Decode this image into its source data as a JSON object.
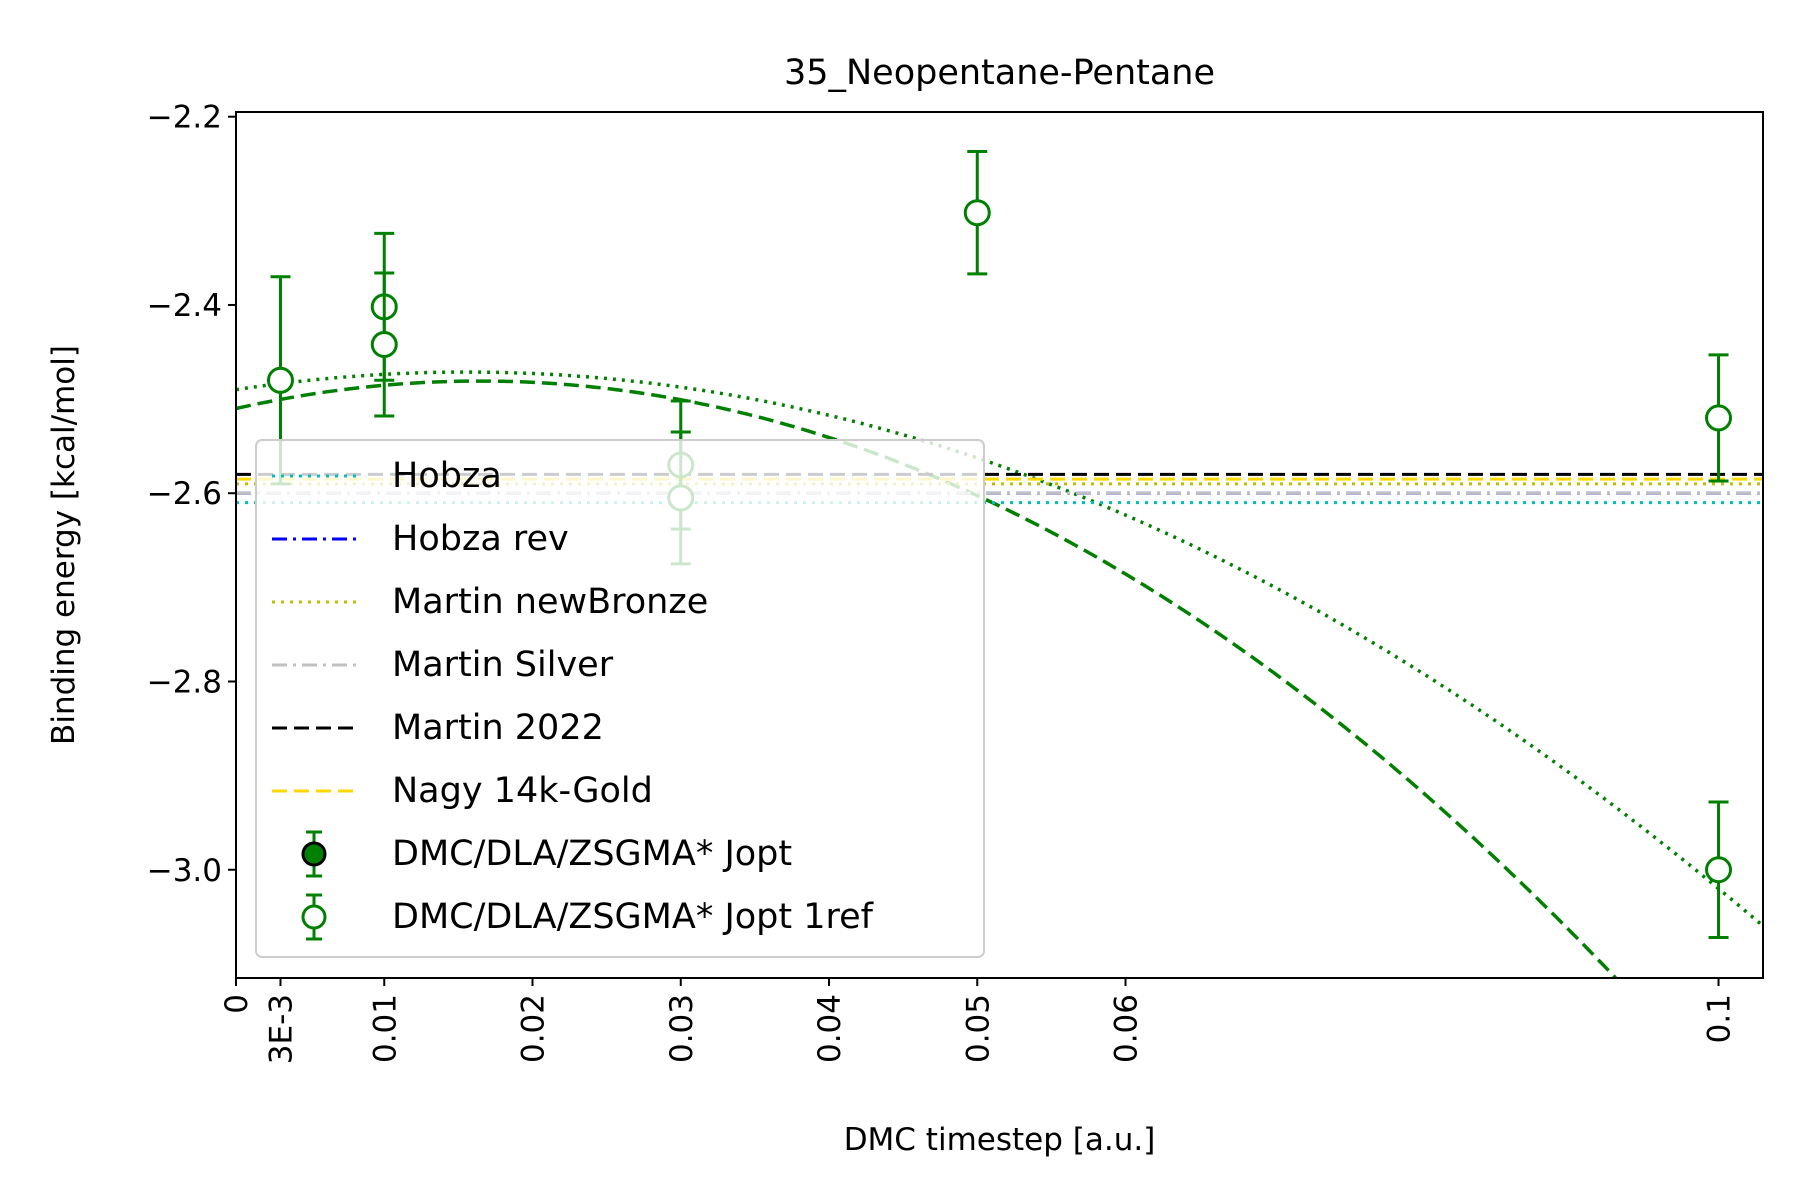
{
  "chart_data": {
    "type": "scatter",
    "title": "35_Neopentane-Pentane",
    "xlabel": "DMC timestep [a.u.]",
    "ylabel": "Binding energy [kcal/mol]",
    "xlim": [
      0,
      0.103
    ],
    "ylim": [
      -3.115,
      -2.195
    ],
    "x_ticks": [
      {
        "value": 0,
        "label": "0"
      },
      {
        "value": 0.003,
        "label": "3E-3"
      },
      {
        "value": 0.01,
        "label": "0.01"
      },
      {
        "value": 0.02,
        "label": "0.02"
      },
      {
        "value": 0.03,
        "label": "0.03"
      },
      {
        "value": 0.04,
        "label": "0.04"
      },
      {
        "value": 0.05,
        "label": "0.05"
      },
      {
        "value": 0.06,
        "label": "0.06"
      },
      {
        "value": 0.1,
        "label": "0.1"
      }
    ],
    "y_ticks": [
      {
        "value": -2.2,
        "label": "−2.2"
      },
      {
        "value": -2.4,
        "label": "−2.4"
      },
      {
        "value": -2.6,
        "label": "−2.6"
      },
      {
        "value": -2.8,
        "label": "−2.8"
      },
      {
        "value": -3.0,
        "label": "−3.0"
      }
    ],
    "reference_lines": [
      {
        "name": "Hobza",
        "y": -2.61,
        "color": "#00bfbf",
        "dash": "dotted"
      },
      {
        "name": "Hobza rev",
        "y": -2.6,
        "color": "#0000ff",
        "dash": "dashdot"
      },
      {
        "name": "Martin newBronze",
        "y": -2.59,
        "color": "#bfbf00",
        "dash": "dotted"
      },
      {
        "name": "Martin Silver",
        "y": -2.6,
        "color": "#c0c0c0",
        "dash": "dashdot"
      },
      {
        "name": "Martin 2022",
        "y": -2.58,
        "color": "#000000",
        "dash": "dashed"
      },
      {
        "name": "Nagy 14k-Gold",
        "y": -2.585,
        "color": "#ffd700",
        "dash": "dashed"
      }
    ],
    "series": [
      {
        "name": "DMC/DLA/ZSGMA* Jopt",
        "marker": "filled-circle",
        "color": "#008000",
        "points": []
      },
      {
        "name": "DMC/DLA/ZSGMA* Jopt 1ref",
        "marker": "open-circle",
        "color": "#008000",
        "points": [
          {
            "x": 0.003,
            "y": -2.48,
            "err": 0.11
          },
          {
            "x": 0.01,
            "y": -2.402,
            "err": 0.078
          },
          {
            "x": 0.01,
            "y": -2.442,
            "err": 0.076
          },
          {
            "x": 0.03,
            "y": -2.57,
            "err": 0.068
          },
          {
            "x": 0.03,
            "y": -2.605,
            "err": 0.07
          },
          {
            "x": 0.05,
            "y": -2.302,
            "err": 0.065
          },
          {
            "x": 0.1,
            "y": -2.52,
            "err": 0.067
          },
          {
            "x": 0.1,
            "y": -3.0,
            "err": 0.072
          }
        ]
      }
    ],
    "fits": [
      {
        "dash": "dashed",
        "color": "#008000",
        "coeffs": [
          -2.51,
          3.55,
          -108.0
        ]
      },
      {
        "dash": "dotted",
        "color": "#008000",
        "coeffs": [
          -2.49,
          2.4,
          -77.0
        ]
      }
    ],
    "legend": "center-left",
    "grid": false
  }
}
